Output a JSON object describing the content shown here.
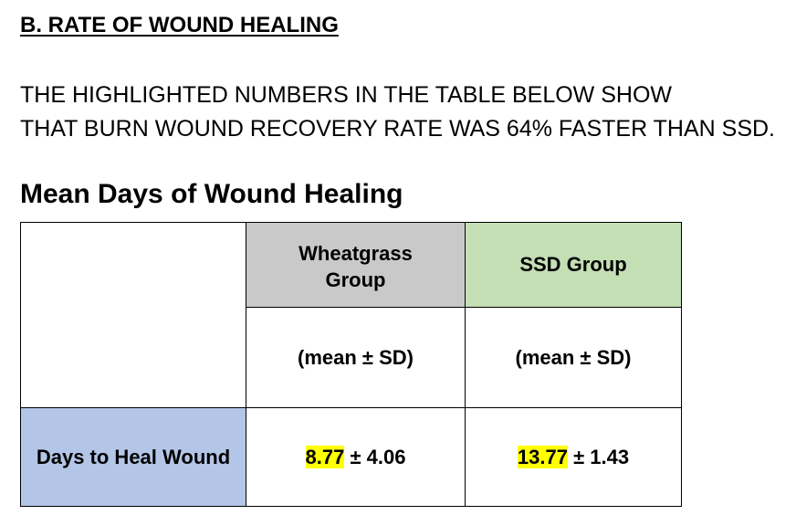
{
  "section_title": "B. RATE OF WOUND HEALING",
  "paragraph": {
    "line1": "THE HIGHLIGHTED NUMBERS IN THE TABLE BELOW SHOW",
    "line2": "THAT BURN WOUND RECOVERY RATE WAS 64% FASTER THAN SSD."
  },
  "table": {
    "title": "Mean Days of Wound Healing",
    "columns": [
      {
        "header_line1": "Wheatgrass",
        "header_line2": "Group",
        "subheader": "(mean ± SD)",
        "header_color": "#c9c9c9"
      },
      {
        "header_line1": "SSD Group",
        "header_line2": "",
        "subheader": "(mean ± SD)",
        "header_color": "#c5dfb5"
      }
    ],
    "rows": [
      {
        "label": "Days to Heal Wound",
        "label_color": "#b4c6e7",
        "cells": [
          {
            "mean": "8.77",
            "sd_text": " ± 4.06"
          },
          {
            "mean": "13.77",
            "sd_text": " ± 1.43"
          }
        ]
      }
    ],
    "highlight_color": "#ffff00"
  }
}
